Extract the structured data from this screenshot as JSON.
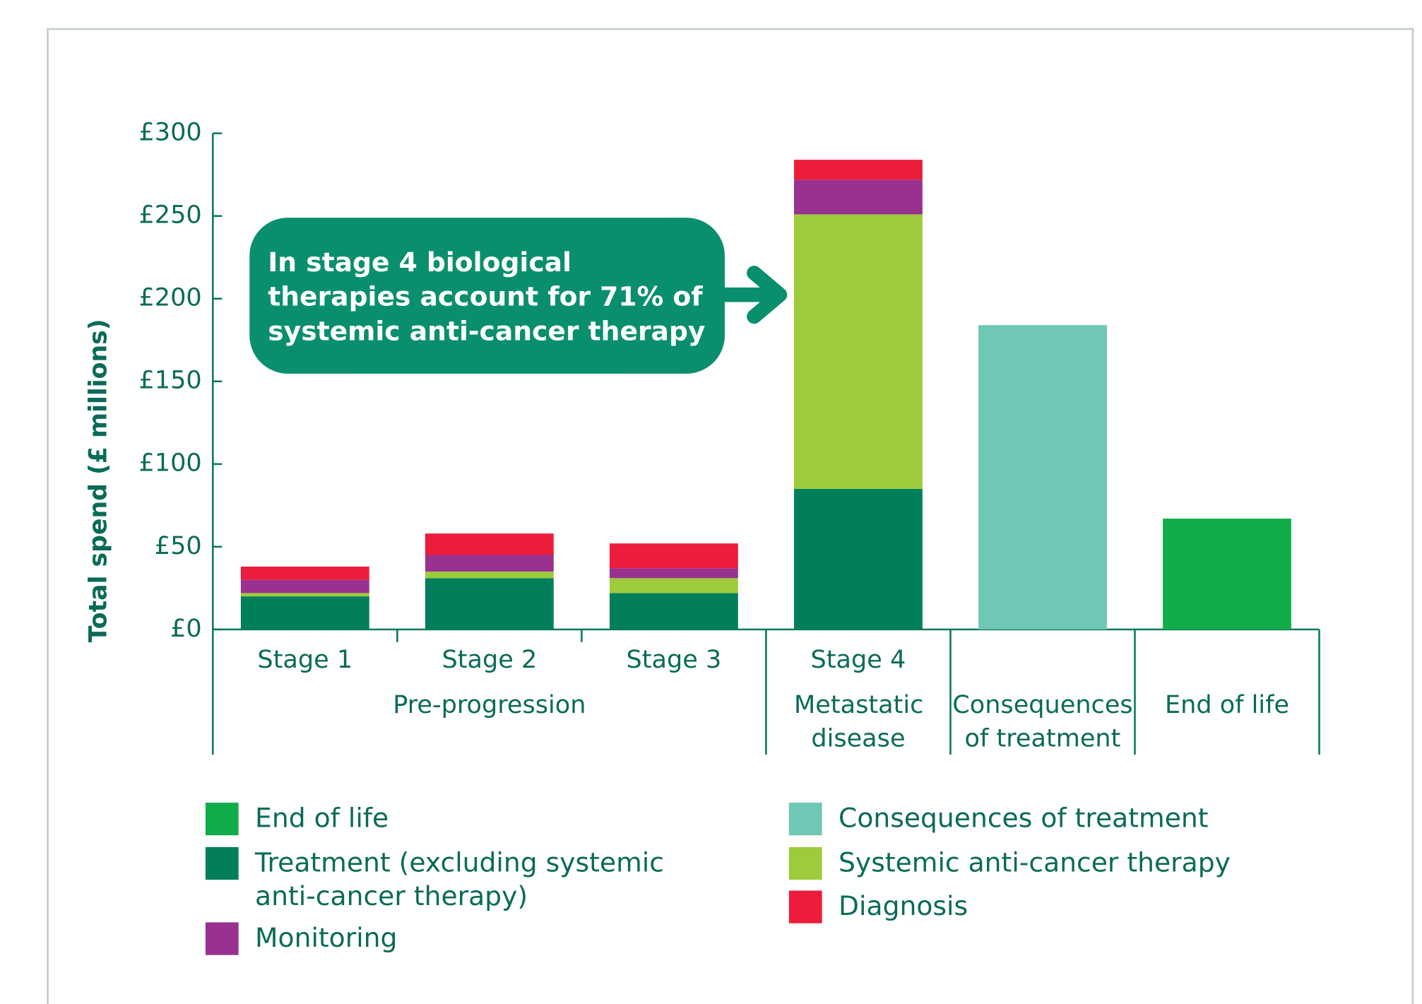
{
  "chart_data": {
    "type": "stacked_bar",
    "y_label": "Total spend (£ millions)",
    "annotation": "In stage 4 biological therapies account for 71% of systemic anti-cancer therapy",
    "categories": [
      "Stage 1",
      "Stage 2",
      "Stage 3",
      "Stage 4",
      "Consequences of treatment",
      "End of life"
    ],
    "groups": [
      {
        "label": "Pre-progression",
        "size": 3
      },
      {
        "label": "Metastatic disease",
        "size": 1
      }
    ],
    "series": [
      {
        "name": "Treatment (excluding systemic anti-cancer therapy)",
        "color": "#007f5a",
        "values": [
          20,
          31,
          22,
          85,
          null,
          null
        ]
      },
      {
        "name": "Systemic anti-cancer therapy",
        "color": "#9ecb3b",
        "values": [
          2,
          4,
          9,
          166,
          null,
          null
        ]
      },
      {
        "name": "Monitoring",
        "color": "#98318f",
        "values": [
          8,
          10,
          6,
          21,
          null,
          null
        ]
      },
      {
        "name": "Diagnosis",
        "color": "#ec1c3b",
        "values": [
          8,
          13,
          15,
          12,
          null,
          null
        ]
      },
      {
        "name": "Consequences of treatment",
        "color": "#6fc7b6",
        "values": [
          null,
          null,
          null,
          null,
          184,
          null
        ]
      },
      {
        "name": "End of life",
        "color": "#12ad4b",
        "values": [
          null,
          null,
          null,
          null,
          null,
          67
        ]
      }
    ],
    "ylim": [
      0,
      300
    ],
    "yticks": [
      {
        "value": 0,
        "label": "£0"
      },
      {
        "value": 50,
        "label": "£50"
      },
      {
        "value": 100,
        "label": "£100"
      },
      {
        "value": 150,
        "label": "£150"
      },
      {
        "value": 200,
        "label": "£200"
      },
      {
        "value": 250,
        "label": "£250"
      },
      {
        "value": 300,
        "label": "£300"
      }
    ],
    "grid": false
  }
}
